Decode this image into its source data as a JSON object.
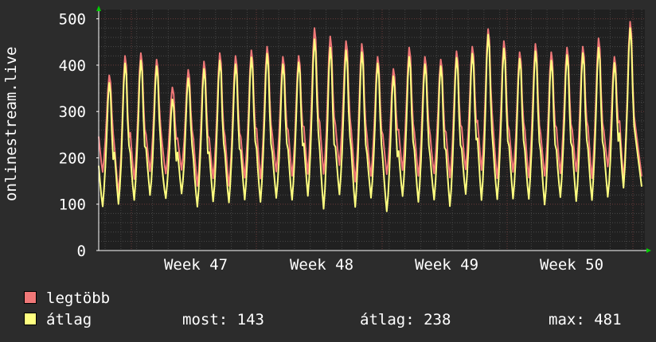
{
  "chart_data": {
    "type": "line",
    "ylabel": "onlinestream.live",
    "ylim": [
      0,
      520
    ],
    "yticks": [
      0,
      100,
      200,
      300,
      400,
      500
    ],
    "x_tick_labels": [
      "Week 47",
      "Week 48",
      "Week 49",
      "Week 50"
    ],
    "grid": true,
    "legend_placement": "bottom",
    "series": [
      {
        "name": "legtöbb",
        "color": "#f07878",
        "daily_peaks": [
          378,
          420,
          426,
          412,
          352,
          390,
          408,
          426,
          420,
          432,
          440,
          418,
          420,
          480,
          462,
          452,
          446,
          418,
          392,
          438,
          418,
          412,
          430,
          440,
          478,
          452,
          428,
          446,
          428,
          438,
          440,
          458,
          418,
          494
        ],
        "daily_lows": [
          175,
          118,
          160,
          165,
          172,
          168,
          145,
          150,
          145,
          152,
          160,
          166,
          165,
          162,
          168,
          182,
          150,
          160,
          165,
          174,
          160,
          168,
          155,
          178,
          170,
          160,
          165,
          162,
          156,
          172,
          165,
          162,
          175,
          160
        ]
      },
      {
        "name": "átlag",
        "color": "#ffff80",
        "daily_peaks": [
          362,
          404,
          410,
          398,
          326,
          372,
          392,
          410,
          402,
          417,
          425,
          402,
          406,
          456,
          438,
          432,
          428,
          404,
          376,
          418,
          402,
          398,
          416,
          425,
          466,
          436,
          414,
          430,
          410,
          422,
          426,
          438,
          405,
          480
        ],
        "daily_lows": [
          95,
          100,
          110,
          118,
          115,
          120,
          98,
          102,
          108,
          105,
          110,
          108,
          115,
          112,
          96,
          115,
          100,
          108,
          90,
          112,
          110,
          105,
          100,
          118,
          112,
          108,
          114,
          110,
          100,
          115,
          106,
          110,
          114,
          138
        ]
      }
    ]
  },
  "legend": {
    "items": [
      {
        "label": "legtöbb",
        "color": "#f07878"
      },
      {
        "label": "átlag",
        "color": "#ffff80"
      }
    ]
  },
  "stats": {
    "now": "most: 143",
    "avg": "átlag: 238",
    "max": "max: 481"
  }
}
